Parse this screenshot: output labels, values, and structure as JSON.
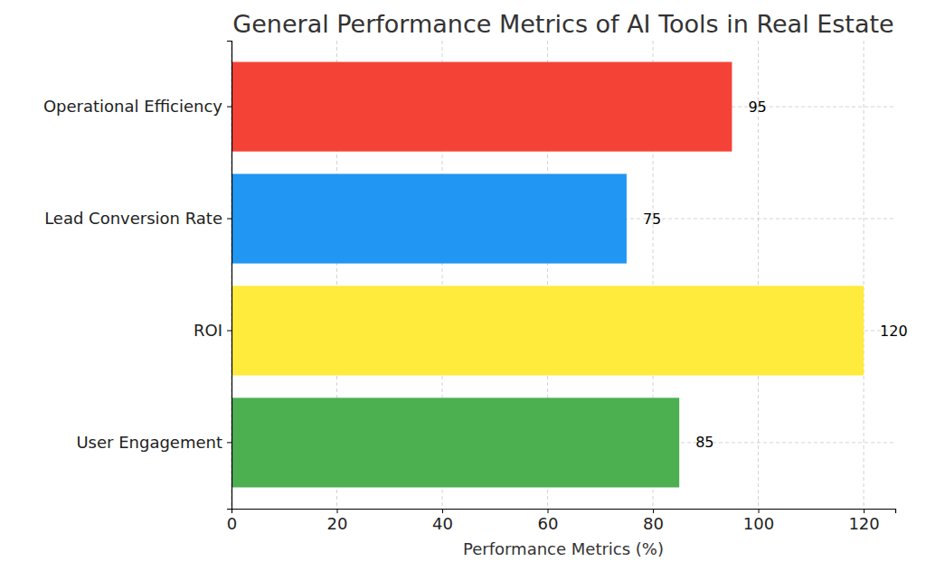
{
  "chart_data": {
    "type": "bar",
    "orientation": "horizontal",
    "title": "General Performance Metrics of AI Tools in Real Estate",
    "x_label": "Performance Metrics (%)",
    "categories": [
      "User Engagement",
      "ROI",
      "Lead Conversion Rate",
      "Operational Efficiency"
    ],
    "values": [
      85,
      120,
      75,
      95
    ],
    "colors": [
      "#4caf50",
      "#ffeb3b",
      "#2196f3",
      "#f44336"
    ],
    "xlim": [
      0,
      126
    ],
    "xticks": [
      0,
      20,
      40,
      60,
      80,
      100,
      120
    ],
    "grid": true,
    "data_labels": true
  }
}
